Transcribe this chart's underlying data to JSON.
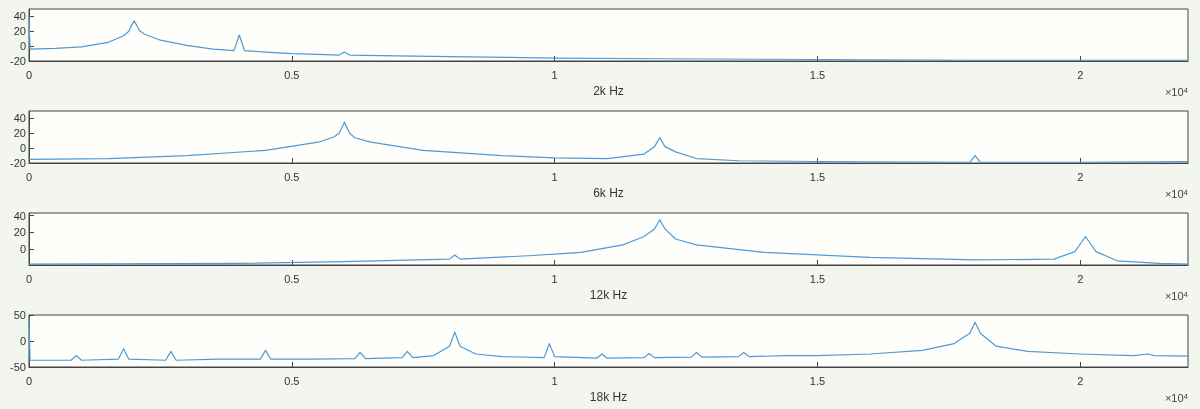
{
  "chart_data": [
    {
      "type": "line",
      "xlabel": "2k Hz",
      "annotations": [
        "×10$^{4}$"
      ],
      "xlim": [
        0,
        2.205
      ],
      "xticks": [
        0,
        0.5,
        1,
        1.5,
        2
      ],
      "ylim": [
        -20,
        50
      ],
      "yticks": [
        -20,
        0,
        20,
        40
      ],
      "marker": "none",
      "line_style": "solid",
      "series": [
        {
          "color": "#4d9bd6",
          "x": [
            0,
            0.002,
            0.05,
            0.1,
            0.15,
            0.18,
            0.19,
            0.195,
            0.2,
            0.205,
            0.21,
            0.22,
            0.25,
            0.3,
            0.35,
            0.39,
            0.4,
            0.41,
            0.45,
            0.5,
            0.55,
            0.59,
            0.6,
            0.61,
            0.7,
            0.8,
            1,
            1.2,
            1.5,
            1.8,
            2,
            2.205
          ],
          "values": [
            40,
            -4,
            -3,
            -1,
            5,
            14,
            20,
            28,
            34,
            28,
            21,
            16,
            8,
            1,
            -4,
            -6,
            15,
            -6,
            -8,
            -10,
            -11,
            -12,
            -8,
            -12,
            -13,
            -14,
            -16,
            -17,
            -18,
            -19,
            -19,
            -19
          ]
        }
      ]
    },
    {
      "type": "line",
      "xlabel": "6k Hz",
      "annotations": [
        "×10$^{4}$"
      ],
      "xlim": [
        0,
        2.205
      ],
      "xticks": [
        0,
        0.5,
        1,
        1.5,
        2
      ],
      "ylim": [
        -20,
        50
      ],
      "yticks": [
        -20,
        0,
        20,
        40
      ],
      "marker": "none",
      "line_style": "solid",
      "series": [
        {
          "color": "#4d9bd6",
          "x": [
            0,
            0.15,
            0.3,
            0.45,
            0.55,
            0.58,
            0.59,
            0.595,
            0.6,
            0.605,
            0.61,
            0.62,
            0.65,
            0.75,
            0.9,
            1,
            1.1,
            1.17,
            1.19,
            1.2,
            1.21,
            1.23,
            1.27,
            1.35,
            1.5,
            1.79,
            1.8,
            1.81,
            2,
            2.205
          ],
          "values": [
            -15,
            -14,
            -10,
            -3,
            8,
            15,
            20,
            27,
            35,
            27,
            20,
            14,
            8,
            -3,
            -10,
            -13,
            -14,
            -8,
            2,
            14,
            2,
            -5,
            -14,
            -17,
            -18,
            -19,
            -10,
            -19,
            -19,
            -18
          ]
        }
      ]
    },
    {
      "type": "line",
      "xlabel": "12k Hz",
      "annotations": [
        "×10$^{4}$"
      ],
      "xlim": [
        0,
        2.205
      ],
      "xticks": [
        0,
        0.5,
        1,
        1.5,
        2
      ],
      "ylim": [
        -19,
        43
      ],
      "yticks": [
        0,
        20,
        40
      ],
      "marker": "none",
      "line_style": "solid",
      "series": [
        {
          "color": "#4d9bd6",
          "x": [
            0,
            0.4,
            0.6,
            0.8,
            0.81,
            0.82,
            0.95,
            1.05,
            1.13,
            1.17,
            1.19,
            1.2,
            1.21,
            1.23,
            1.27,
            1.4,
            1.6,
            1.8,
            1.95,
            1.99,
            2.01,
            2.03,
            2.07,
            2.15,
            2.205
          ],
          "values": [
            -18,
            -17,
            -15,
            -12,
            -7,
            -12,
            -8,
            -4,
            5,
            15,
            24,
            35,
            24,
            12,
            5,
            -4,
            -10,
            -13,
            -12,
            -3,
            15,
            -3,
            -14,
            -17,
            -18
          ]
        }
      ]
    },
    {
      "type": "line",
      "xlabel": "18k Hz",
      "annotations": [
        "×10$^{4}$"
      ],
      "xlim": [
        0,
        2.205
      ],
      "xticks": [
        0,
        0.5,
        1,
        1.5,
        2
      ],
      "ylim": [
        -50,
        50
      ],
      "yticks": [
        -50,
        0,
        50
      ],
      "marker": "none",
      "line_style": "solid",
      "series": [
        {
          "color": "#4d9bd6",
          "x": [
            0,
            0.002,
            0.08,
            0.09,
            0.1,
            0.17,
            0.18,
            0.19,
            0.26,
            0.27,
            0.28,
            0.36,
            0.44,
            0.45,
            0.46,
            0.54,
            0.62,
            0.63,
            0.64,
            0.71,
            0.72,
            0.73,
            0.77,
            0.8,
            0.81,
            0.82,
            0.85,
            0.9,
            0.98,
            0.99,
            1,
            1.08,
            1.09,
            1.1,
            1.17,
            1.18,
            1.19,
            1.26,
            1.27,
            1.28,
            1.35,
            1.36,
            1.37,
            1.44,
            1.5,
            1.6,
            1.7,
            1.76,
            1.79,
            1.8,
            1.81,
            1.84,
            1.9,
            2,
            2.1,
            2.13,
            2.14,
            2.205
          ],
          "values": [
            45,
            -37,
            -37,
            -28,
            -37,
            -35,
            -15,
            -35,
            -37,
            -20,
            -37,
            -35,
            -35,
            -18,
            -35,
            -35,
            -34,
            -22,
            -34,
            -32,
            -20,
            -32,
            -28,
            -10,
            17,
            -10,
            -25,
            -30,
            -32,
            -5,
            -30,
            -33,
            -25,
            -33,
            -32,
            -24,
            -32,
            -31,
            -22,
            -31,
            -30,
            -22,
            -30,
            -28,
            -28,
            -25,
            -18,
            -5,
            15,
            36,
            15,
            -10,
            -20,
            -25,
            -28,
            -25,
            -28,
            -29
          ]
        }
      ]
    }
  ]
}
